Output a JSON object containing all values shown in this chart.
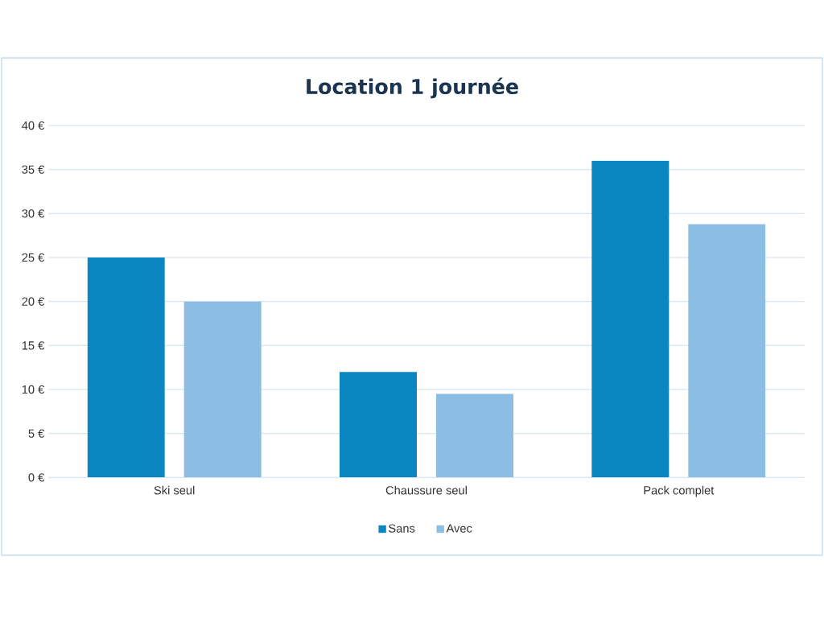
{
  "chart_data": {
    "type": "bar",
    "title": "Location 1 journée",
    "categories": [
      "Ski seul",
      "Chaussure seul",
      "Pack complet"
    ],
    "series": [
      {
        "name": "Sans",
        "color": "#0a86c0",
        "values": [
          25,
          12,
          36
        ]
      },
      {
        "name": "Avec",
        "color": "#8cbde3",
        "values": [
          20,
          9.5,
          28.8
        ]
      }
    ],
    "ylim": [
      0,
      40
    ],
    "yticks": [
      {
        "value": 0,
        "label": "0 €"
      },
      {
        "value": 5,
        "label": "5 €"
      },
      {
        "value": 10,
        "label": "10 €"
      },
      {
        "value": 15,
        "label": "15 €"
      },
      {
        "value": 20,
        "label": "20 €"
      },
      {
        "value": 25,
        "label": "25 €"
      },
      {
        "value": 30,
        "label": "30 €"
      },
      {
        "value": 35,
        "label": "35 €"
      },
      {
        "value": 40,
        "label": "40 €"
      }
    ],
    "grid": "y",
    "legend": "bottom"
  }
}
